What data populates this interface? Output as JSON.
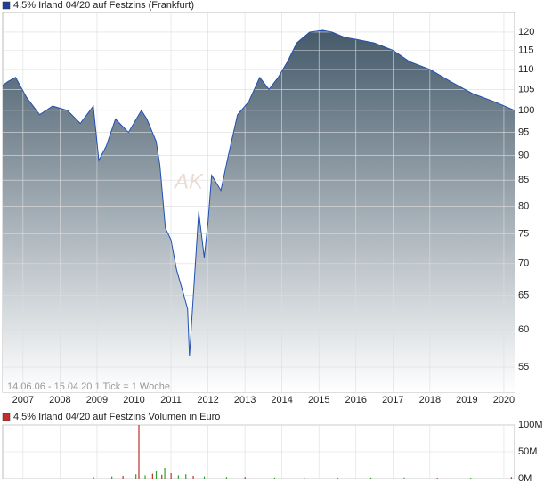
{
  "chart_data": [
    {
      "type": "area",
      "title": "4,5% Irland 04/20 auf Festzins (Frankfurt)",
      "legend_color": "#1f3f99",
      "footer": "14.06.06 - 15.04.20   1 Tick = 1 Woche",
      "watermark": "AK",
      "log_scale": true,
      "grid": true,
      "color": "#2050b0",
      "fill_top": "#455a6a",
      "xlim": [
        2006.45,
        2020.29
      ],
      "ylim": [
        51.9,
        125.6
      ],
      "xticks": [
        2007,
        2008,
        2009,
        2010,
        2011,
        2012,
        2013,
        2014,
        2015,
        2016,
        2017,
        2018,
        2019,
        2020
      ],
      "yticks": [
        55,
        60,
        65,
        70,
        75,
        80,
        85,
        90,
        95,
        100,
        105,
        110,
        115,
        120
      ],
      "x": [
        2006.45,
        2006.6,
        2006.8,
        2007.1,
        2007.45,
        2007.8,
        2008.2,
        2008.55,
        2008.9,
        2009.05,
        2009.25,
        2009.5,
        2009.85,
        2010.2,
        2010.35,
        2010.6,
        2010.7,
        2010.85,
        2011.0,
        2011.15,
        2011.3,
        2011.45,
        2011.5,
        2011.65,
        2011.75,
        2011.9,
        2012.0,
        2012.1,
        2012.35,
        2012.55,
        2012.8,
        2013.1,
        2013.4,
        2013.65,
        2013.9,
        2014.15,
        2014.4,
        2014.75,
        2015.1,
        2015.35,
        2015.7,
        2016.0,
        2016.5,
        2017.0,
        2017.45,
        2018.0,
        2018.55,
        2019.15,
        2019.75,
        2020.29
      ],
      "values": [
        106,
        107,
        108,
        103,
        99,
        101,
        100,
        97,
        101,
        89,
        92,
        98,
        95,
        100,
        98,
        93,
        88,
        76,
        74,
        69,
        66,
        63,
        56.4,
        69,
        79,
        71,
        77,
        86,
        83,
        90,
        99,
        102,
        108,
        105,
        108,
        112,
        117,
        120,
        120.5,
        120,
        118.5,
        118,
        117,
        115,
        112,
        110,
        107,
        104,
        102,
        100
      ]
    },
    {
      "type": "bar",
      "title": "4,5% Irland 04/20 auf Festzins Volumen in Euro",
      "legend_color": "#c03030",
      "grid": true,
      "xlim": [
        2006.45,
        2020.29
      ],
      "ylim": [
        0,
        100000000
      ],
      "xticks": [
        2007,
        2008,
        2009,
        2010,
        2011,
        2012,
        2013,
        2014,
        2015,
        2016,
        2017,
        2018,
        2019,
        2020
      ],
      "yticks": [
        {
          "value": 0,
          "label": "0M"
        },
        {
          "value": 50000000,
          "label": "50M"
        },
        {
          "value": 100000000,
          "label": "100M"
        }
      ],
      "x": [
        2008.9,
        2009.4,
        2009.7,
        2010.05,
        2010.13,
        2010.3,
        2010.5,
        2010.6,
        2010.75,
        2010.83,
        2011.0,
        2011.2,
        2011.4,
        2011.6,
        2011.9,
        2012.5,
        2013.0,
        2013.8,
        2014.6,
        2015.5,
        2016.4,
        2017.3,
        2018.2,
        2019.1,
        2020.2
      ],
      "values": [
        3000000,
        4000000,
        5000000,
        8000000,
        100000000,
        6000000,
        9000000,
        15000000,
        7000000,
        20000000,
        10000000,
        6000000,
        8000000,
        5000000,
        4000000,
        3000000,
        3000000,
        2000000,
        2000000,
        2000000,
        2000000,
        2000000,
        1500000,
        1500000,
        3000000
      ],
      "colors": [
        "#c03030",
        "#30a030",
        "#c03030",
        "#30a030",
        "#c03030",
        "#30a030",
        "#c03030",
        "#30a030",
        "#c03030",
        "#30a030",
        "#c03030",
        "#30a030",
        "#30a030",
        "#c03030",
        "#30a030",
        "#30a030",
        "#c03030",
        "#30a030",
        "#30a030",
        "#c03030",
        "#30a030",
        "#30a030",
        "#c03030",
        "#30a030",
        "#c03030"
      ]
    }
  ]
}
